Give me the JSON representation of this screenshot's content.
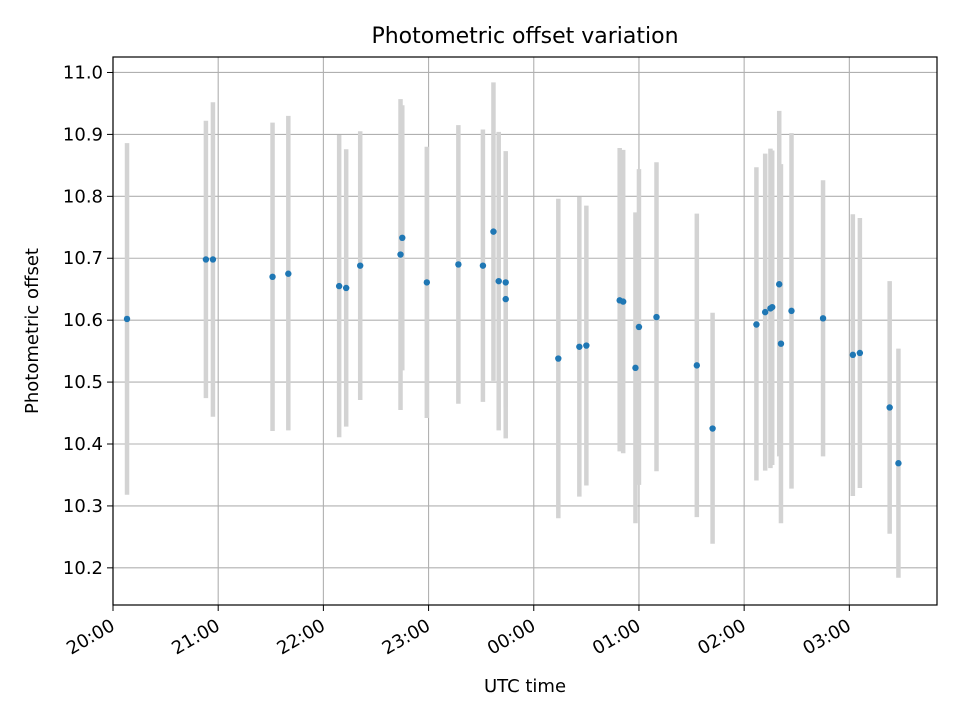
{
  "chart_data": {
    "type": "scatter",
    "title": "Photometric offset variation",
    "xlabel": "UTC time",
    "ylabel": "Photometric offset",
    "x_is_time": true,
    "xlim": [
      "20:00",
      "03:50"
    ],
    "ylim": [
      10.14,
      11.025
    ],
    "xticks": [
      "20:00",
      "21:00",
      "22:00",
      "23:00",
      "00:00",
      "01:00",
      "02:00",
      "03:00"
    ],
    "yticks": [
      "10.2",
      "10.3",
      "10.4",
      "10.5",
      "10.6",
      "10.7",
      "10.8",
      "10.9",
      "11.0"
    ],
    "grid": true,
    "point_color": "#1f77b4",
    "errorbar_color": "#d3d3d3",
    "points": [
      {
        "t": "20:08",
        "y": 10.602,
        "lo": 10.318,
        "hi": 10.886
      },
      {
        "t": "20:53",
        "y": 10.698,
        "lo": 10.474,
        "hi": 10.922
      },
      {
        "t": "20:57",
        "y": 10.698,
        "lo": 10.444,
        "hi": 10.952
      },
      {
        "t": "21:31",
        "y": 10.67,
        "lo": 10.421,
        "hi": 10.919
      },
      {
        "t": "21:40",
        "y": 10.675,
        "lo": 10.422,
        "hi": 10.93
      },
      {
        "t": "22:09",
        "y": 10.655,
        "lo": 10.411,
        "hi": 10.899
      },
      {
        "t": "22:13",
        "y": 10.652,
        "lo": 10.428,
        "hi": 10.876
      },
      {
        "t": "22:21",
        "y": 10.688,
        "lo": 10.471,
        "hi": 10.905
      },
      {
        "t": "22:44",
        "y": 10.706,
        "lo": 10.455,
        "hi": 10.957
      },
      {
        "t": "22:45",
        "y": 10.733,
        "lo": 10.519,
        "hi": 10.947
      },
      {
        "t": "22:59",
        "y": 10.661,
        "lo": 10.442,
        "hi": 10.88
      },
      {
        "t": "23:17",
        "y": 10.69,
        "lo": 10.465,
        "hi": 10.915
      },
      {
        "t": "23:31",
        "y": 10.688,
        "lo": 10.468,
        "hi": 10.908
      },
      {
        "t": "23:37",
        "y": 10.743,
        "lo": 10.502,
        "hi": 10.984
      },
      {
        "t": "23:40",
        "y": 10.663,
        "lo": 10.422,
        "hi": 10.904
      },
      {
        "t": "23:44",
        "y": 10.661,
        "lo": 10.459,
        "hi": 10.863
      },
      {
        "t": "23:44",
        "y": 10.634,
        "lo": 10.409,
        "hi": 10.873
      },
      {
        "t": "00:14",
        "y": 10.538,
        "lo": 10.28,
        "hi": 10.796
      },
      {
        "t": "00:26",
        "y": 10.557,
        "lo": 10.315,
        "hi": 10.799
      },
      {
        "t": "00:30",
        "y": 10.559,
        "lo": 10.333,
        "hi": 10.785
      },
      {
        "t": "00:49",
        "y": 10.632,
        "lo": 10.388,
        "hi": 10.878
      },
      {
        "t": "00:51",
        "y": 10.63,
        "lo": 10.385,
        "hi": 10.875
      },
      {
        "t": "00:58",
        "y": 10.523,
        "lo": 10.272,
        "hi": 10.774
      },
      {
        "t": "01:00",
        "y": 10.589,
        "lo": 10.334,
        "hi": 10.844
      },
      {
        "t": "01:10",
        "y": 10.605,
        "lo": 10.356,
        "hi": 10.855
      },
      {
        "t": "01:33",
        "y": 10.527,
        "lo": 10.282,
        "hi": 10.772
      },
      {
        "t": "01:42",
        "y": 10.425,
        "lo": 10.239,
        "hi": 10.612
      },
      {
        "t": "02:07",
        "y": 10.593,
        "lo": 10.341,
        "hi": 10.847
      },
      {
        "t": "02:12",
        "y": 10.613,
        "lo": 10.357,
        "hi": 10.869
      },
      {
        "t": "02:15",
        "y": 10.619,
        "lo": 10.361,
        "hi": 10.877
      },
      {
        "t": "02:16",
        "y": 10.621,
        "lo": 10.366,
        "hi": 10.874
      },
      {
        "t": "02:20",
        "y": 10.658,
        "lo": 10.38,
        "hi": 10.938
      },
      {
        "t": "02:21",
        "y": 10.562,
        "lo": 10.272,
        "hi": 10.852
      },
      {
        "t": "02:27",
        "y": 10.615,
        "lo": 10.328,
        "hi": 10.902
      },
      {
        "t": "02:45",
        "y": 10.603,
        "lo": 10.38,
        "hi": 10.826
      },
      {
        "t": "03:02",
        "y": 10.544,
        "lo": 10.316,
        "hi": 10.771
      },
      {
        "t": "03:06",
        "y": 10.547,
        "lo": 10.329,
        "hi": 10.765
      },
      {
        "t": "03:23",
        "y": 10.459,
        "lo": 10.255,
        "hi": 10.663
      },
      {
        "t": "03:28",
        "y": 10.369,
        "lo": 10.184,
        "hi": 10.554
      }
    ]
  }
}
